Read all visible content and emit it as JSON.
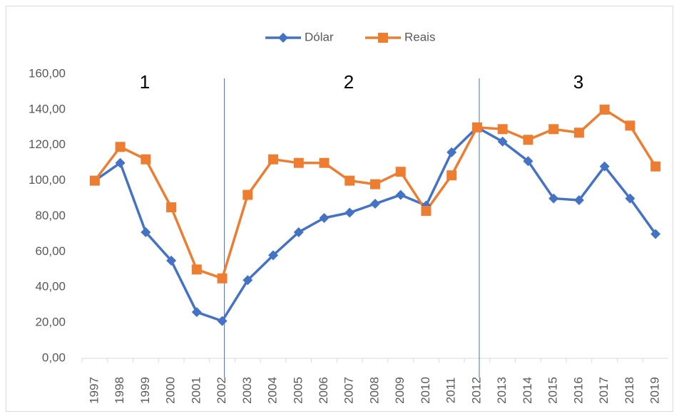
{
  "chart_data": {
    "type": "line",
    "categories": [
      "1997",
      "1998",
      "1999",
      "2000",
      "2001",
      "2002",
      "2003",
      "2004",
      "2005",
      "2006",
      "2007",
      "2008",
      "2009",
      "2010",
      "2011",
      "2012",
      "2013",
      "2014",
      "2015",
      "2016",
      "2017",
      "2018",
      "2019"
    ],
    "series": [
      {
        "name": "Dólar",
        "color": "#4472c4",
        "marker": "diamond",
        "values": [
          100,
          110,
          71,
          55,
          26,
          21,
          44,
          58,
          71,
          79,
          82,
          87,
          92,
          86,
          116,
          130,
          122,
          111,
          90,
          89,
          108,
          90,
          70
        ]
      },
      {
        "name": "Reais",
        "color": "#ed7d31",
        "marker": "square",
        "values": [
          100,
          119,
          112,
          85,
          50,
          45,
          92,
          112,
          110,
          110,
          100,
          98,
          105,
          83,
          103,
          130,
          129,
          123,
          129,
          127,
          140,
          131,
          108
        ]
      }
    ],
    "ylim": [
      0,
      160
    ],
    "yticks": [
      {
        "value": 0,
        "label": "0,00"
      },
      {
        "value": 20,
        "label": "20,00"
      },
      {
        "value": 40,
        "label": "40,00"
      },
      {
        "value": 60,
        "label": "60,00"
      },
      {
        "value": 80,
        "label": "80,00"
      },
      {
        "value": 100,
        "label": "100,00"
      },
      {
        "value": 120,
        "label": "120,00"
      },
      {
        "value": 140,
        "label": "140,00"
      },
      {
        "value": 160,
        "label": "160,00"
      }
    ],
    "vlines": [
      "2002",
      "2012"
    ],
    "annotations": [
      "1",
      "2",
      "3"
    ],
    "legend": "top"
  }
}
